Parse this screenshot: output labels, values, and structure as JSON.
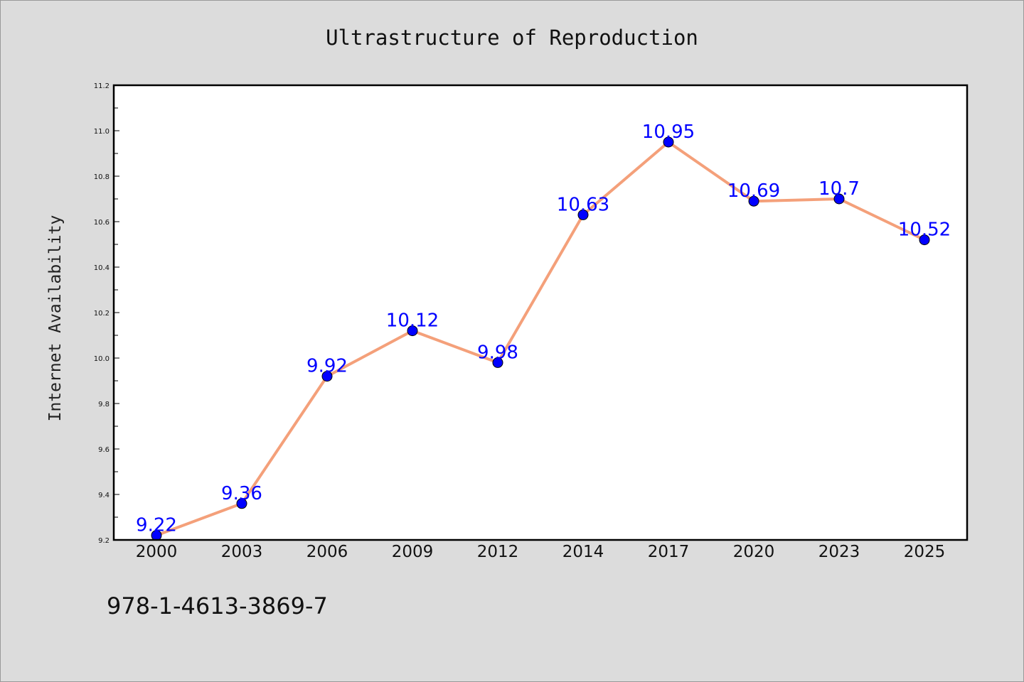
{
  "chart_data": {
    "type": "line",
    "title": "Ultrastructure of Reproduction",
    "xlabel": "",
    "ylabel": "Internet Availability",
    "categories": [
      "2000",
      "2003",
      "2006",
      "2009",
      "2012",
      "2014",
      "2017",
      "2020",
      "2023",
      "2025"
    ],
    "values": [
      9.22,
      9.36,
      9.92,
      10.12,
      9.98,
      10.63,
      10.95,
      10.69,
      10.7,
      10.52
    ],
    "data_labels": [
      "9.22",
      "9.36",
      "9.92",
      "10.12",
      "9.98",
      "10.63",
      "10.95",
      "10.69",
      "10.7",
      "10.52"
    ],
    "ylim": [
      9.2,
      11.2
    ],
    "yticks": [
      "9.2",
      "9.4",
      "9.6",
      "9.8",
      "10.0",
      "10.2",
      "10.4",
      "10.6",
      "10.8",
      "11.0",
      "11.2"
    ],
    "grid": false,
    "line_color": "#f4a07a",
    "marker_color": "#0000ff",
    "label_color": "#0000ff"
  },
  "footer": {
    "isbn": "978-1-4613-3869-7"
  }
}
